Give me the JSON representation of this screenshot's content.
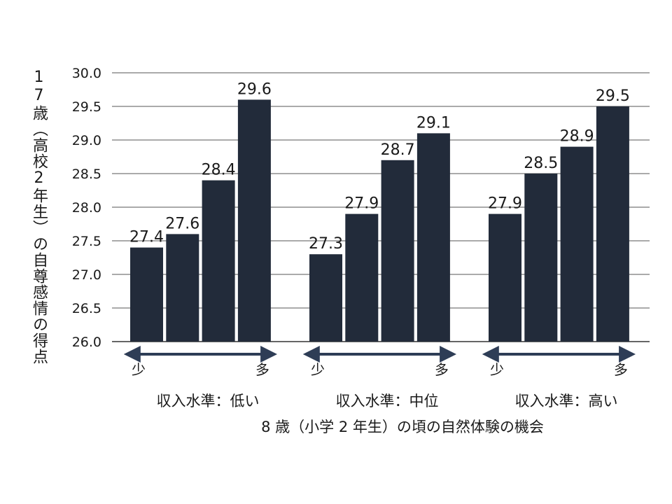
{
  "chart_data": {
    "type": "bar",
    "ylabel": "17歳（高校2年生）の自尊感情の得点",
    "xlabel": "8 歳（小学 2 年生）の頃の自然体験の機会",
    "ylim": [
      26.0,
      30.0
    ],
    "yticks": [
      "30.0",
      "29.5",
      "29.0",
      "28.5",
      "28.0",
      "27.5",
      "27.0",
      "26.5",
      "26.0"
    ],
    "grid": true,
    "bar_color": "#222b3a",
    "arrow_color": "#2e3d56",
    "groups": [
      {
        "label": "収入水準：低い",
        "values": [
          27.4,
          27.6,
          28.4,
          29.6
        ],
        "arrow_start": "少",
        "arrow_end": "多"
      },
      {
        "label": "収入水準：中位",
        "values": [
          27.3,
          27.9,
          28.7,
          29.1
        ],
        "arrow_start": "少",
        "arrow_end": "多"
      },
      {
        "label": "収入水準：高い",
        "values": [
          27.9,
          28.5,
          28.9,
          29.5
        ],
        "arrow_start": "少",
        "arrow_end": "多"
      }
    ]
  }
}
